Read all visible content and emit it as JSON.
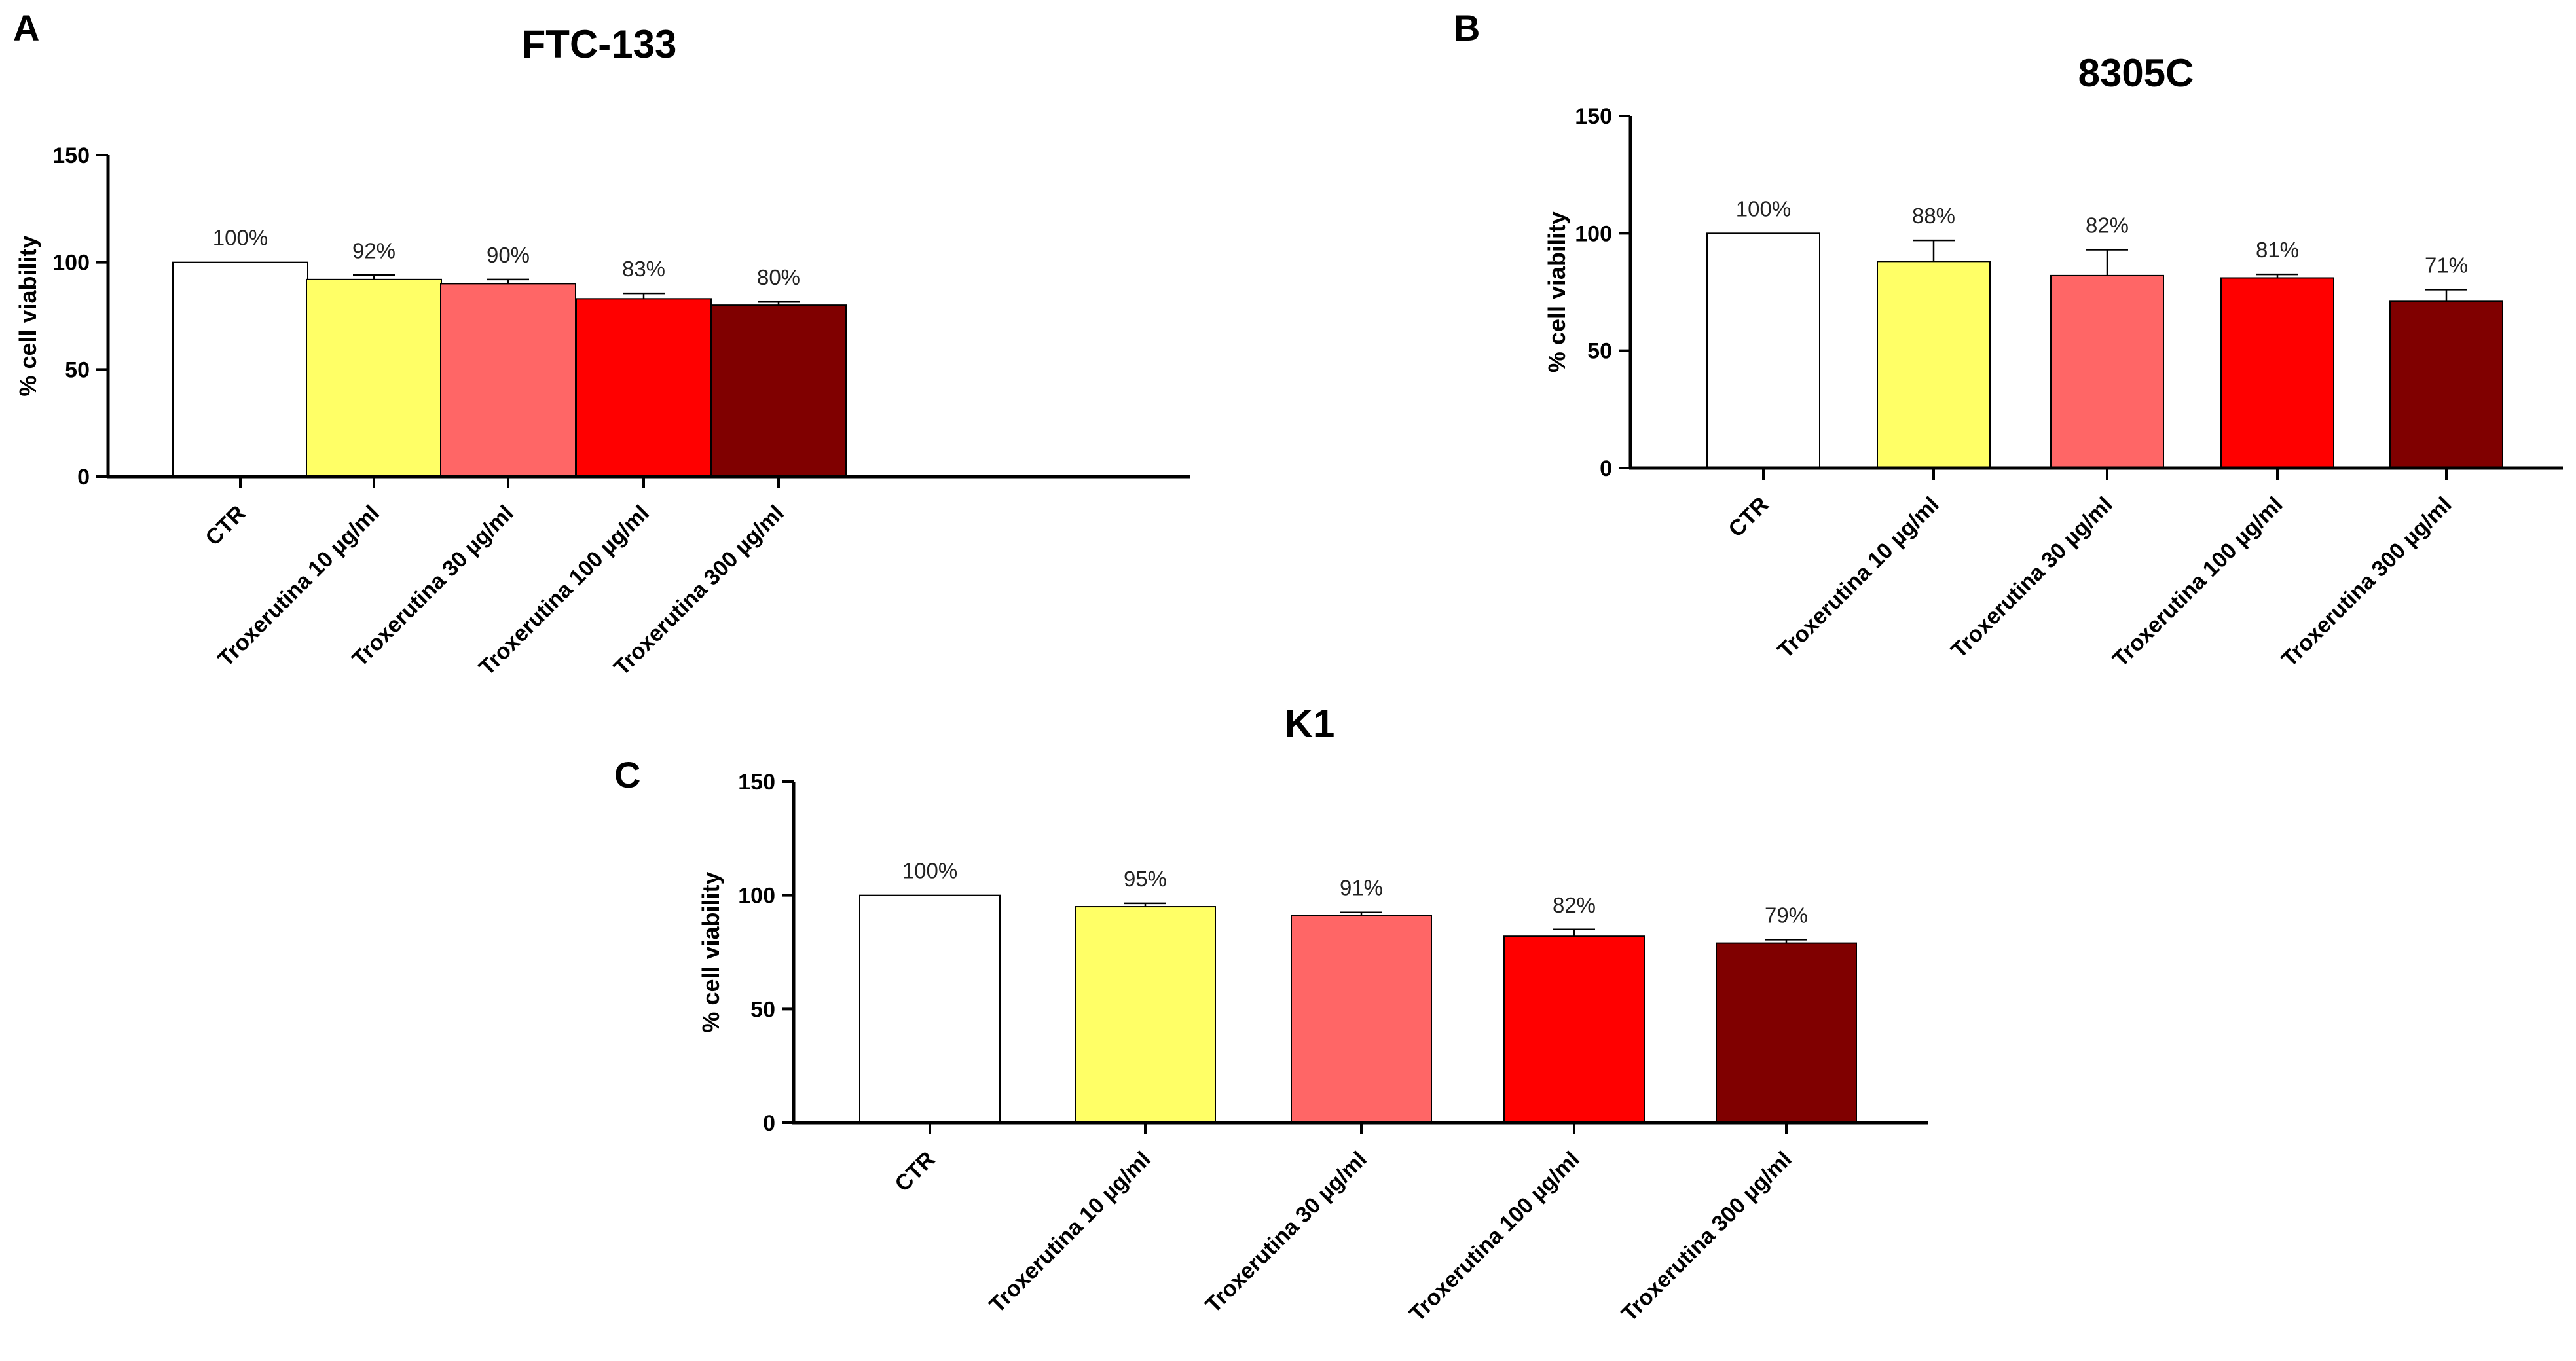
{
  "chart_data": [
    {
      "panel": "A",
      "type": "bar",
      "title": "FTC-133",
      "ylabel": "% cell viability",
      "xlabel": "",
      "ylim": [
        0,
        150
      ],
      "yticks": [
        0,
        50,
        100,
        150
      ],
      "categories": [
        "CTR",
        "Troxerutina 10 µg/ml",
        "Troxerutina 30 µg/ml",
        "Troxerutina 100 µg/ml",
        "Troxerutina 300 µg/ml"
      ],
      "values": [
        100,
        92,
        90,
        83,
        80
      ],
      "errors": [
        0,
        2,
        2,
        2.5,
        1.5
      ],
      "data_labels": [
        "100%",
        "92%",
        "90%",
        "83%",
        "80%"
      ],
      "colors": [
        "#ffffff",
        "#ffff66",
        "#ff6666",
        "#ff0000",
        "#800000"
      ],
      "grid": false,
      "legend": "none"
    },
    {
      "panel": "B",
      "type": "bar",
      "title": "8305C",
      "ylabel": "% cell viability",
      "xlabel": "",
      "ylim": [
        0,
        150
      ],
      "yticks": [
        0,
        50,
        100,
        150
      ],
      "categories": [
        "CTR",
        "Troxerutina 10 µg/ml",
        "Troxerutina 30 µg/ml",
        "Troxerutina 100 µg/ml",
        "Troxerutina 300 µg/ml"
      ],
      "values": [
        100,
        88,
        82,
        81,
        71
      ],
      "errors": [
        0,
        9,
        11,
        1.5,
        5
      ],
      "data_labels": [
        "100%",
        "88%",
        "82%",
        "81%",
        "71%"
      ],
      "colors": [
        "#ffffff",
        "#ffff66",
        "#ff6666",
        "#ff0000",
        "#800000"
      ],
      "grid": false,
      "legend": "none"
    },
    {
      "panel": "C",
      "type": "bar",
      "title": "K1",
      "ylabel": "% cell viability",
      "xlabel": "",
      "ylim": [
        0,
        150
      ],
      "yticks": [
        0,
        50,
        100,
        150
      ],
      "categories": [
        "CTR",
        "Troxerutina 10 µg/ml",
        "Troxerutina 30 µg/ml",
        "Troxerutina 100 µg/ml",
        "Troxerutina 300 µg/ml"
      ],
      "values": [
        100,
        95,
        91,
        82,
        79
      ],
      "errors": [
        0,
        1.5,
        1.5,
        3,
        1.5
      ],
      "data_labels": [
        "100%",
        "95%",
        "91%",
        "82%",
        "79%"
      ],
      "colors": [
        "#ffffff",
        "#ffff66",
        "#ff6666",
        "#ff0000",
        "#800000"
      ],
      "grid": false,
      "legend": "none"
    }
  ]
}
